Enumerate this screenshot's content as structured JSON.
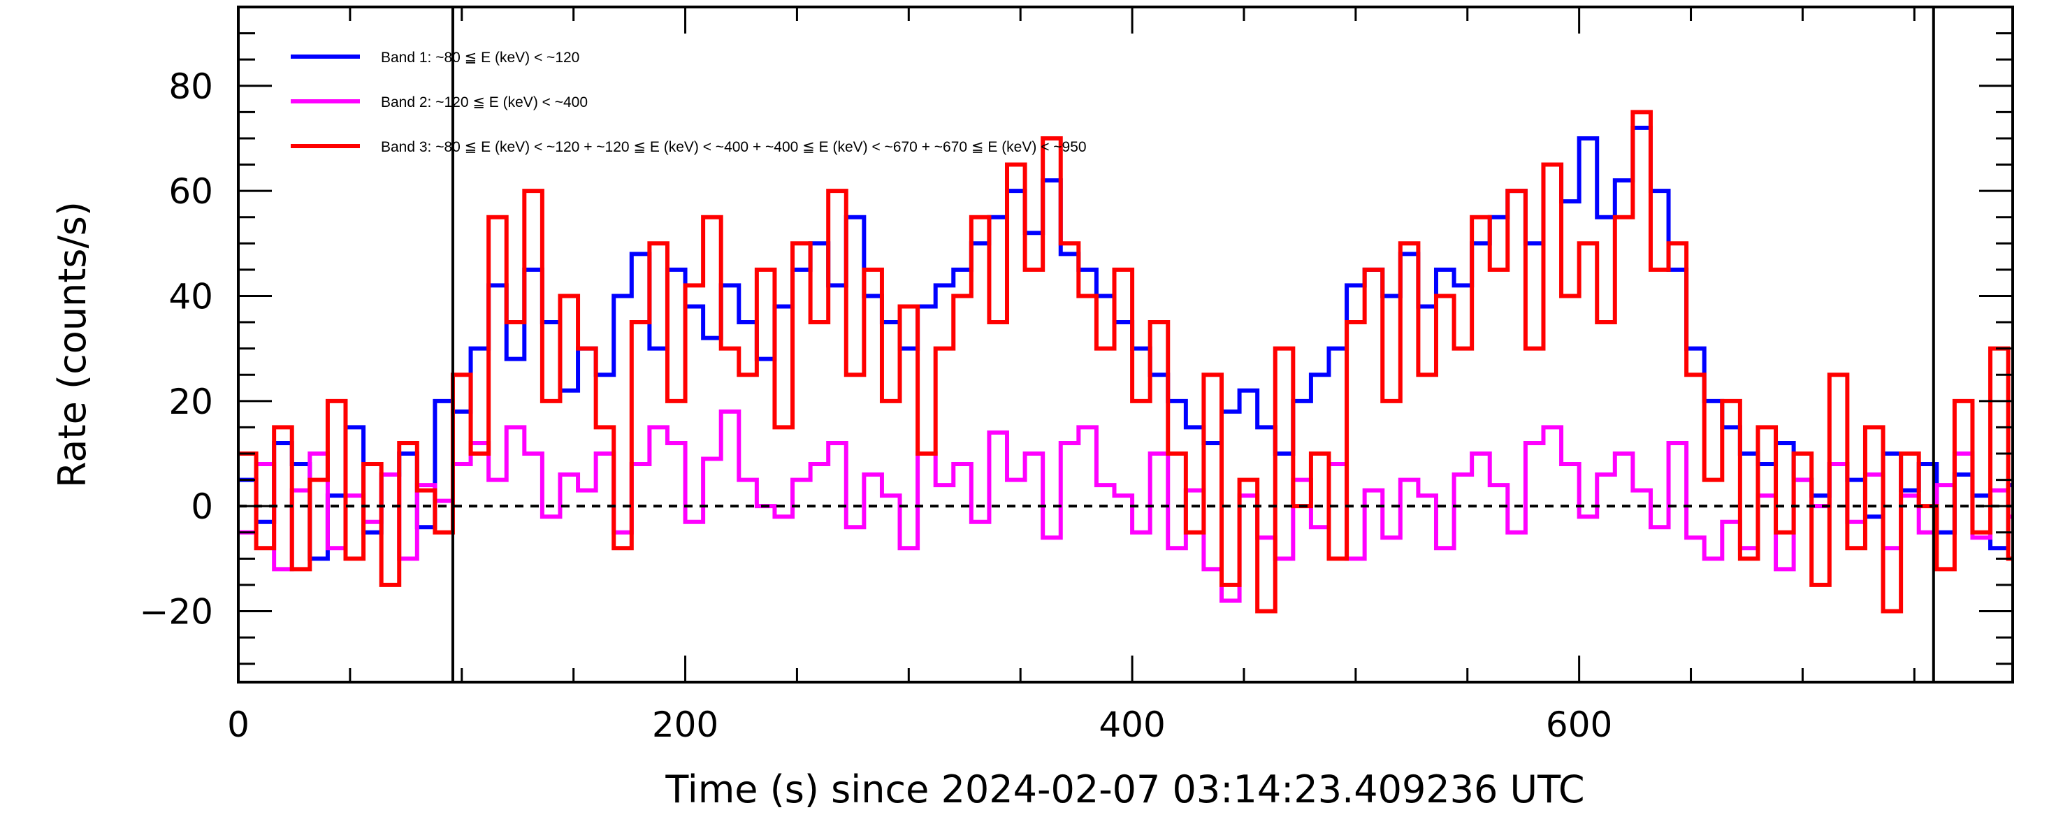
{
  "chart_data": {
    "type": "line",
    "style": "histogram-step",
    "xlabel": "Time (s) since 2024-02-07 03:14:23.409236 UTC",
    "ylabel": "Rate (counts/s)",
    "xlim": [
      0,
      794
    ],
    "ylim": [
      -33.5,
      95
    ],
    "xticks": [
      0,
      200,
      400,
      600
    ],
    "xtick_labels": [
      "0",
      "200",
      "400",
      "600"
    ],
    "yticks": [
      -20,
      0,
      20,
      40,
      60,
      80
    ],
    "ytick_labels": [
      "−20",
      "0",
      "20",
      "40",
      "60",
      "80"
    ],
    "x_minor_step": 50,
    "y_minor_step": 5,
    "reference_line_y": 0,
    "vertical_markers_x": [
      96,
      758.6
    ],
    "legend_position": "top-left",
    "x_start": 0,
    "x_step": 8,
    "series": [
      {
        "name": "Band 1: ~80 ≦ E (keV) < ~120",
        "color": "#0000ff",
        "values": [
          5,
          -3,
          12,
          8,
          -10,
          2,
          15,
          -5,
          6,
          10,
          -4,
          20,
          18,
          30,
          42,
          28,
          45,
          35,
          22,
          30,
          25,
          40,
          48,
          30,
          45,
          38,
          32,
          42,
          35,
          28,
          38,
          45,
          50,
          42,
          55,
          40,
          35,
          30,
          38,
          42,
          45,
          50,
          55,
          60,
          52,
          62,
          48,
          45,
          40,
          35,
          30,
          25,
          20,
          15,
          12,
          18,
          22,
          15,
          10,
          20,
          25,
          30,
          42,
          45,
          40,
          48,
          38,
          45,
          42,
          50,
          55,
          60,
          50,
          65,
          58,
          70,
          55,
          62,
          72,
          60,
          45,
          30,
          20,
          15,
          10,
          8,
          12,
          5,
          2,
          8,
          5,
          -2,
          10,
          3,
          8,
          -5,
          6,
          2,
          -8,
          4
        ]
      },
      {
        "name": "Band 2: ~120 ≦ E (keV) < ~400",
        "color": "#ff00ff",
        "values": [
          -5,
          8,
          -12,
          3,
          10,
          -8,
          2,
          -3,
          6,
          -10,
          4,
          1,
          8,
          12,
          5,
          15,
          10,
          -2,
          6,
          3,
          10,
          -5,
          8,
          15,
          12,
          -3,
          9,
          18,
          5,
          0,
          -2,
          5,
          8,
          12,
          -4,
          6,
          2,
          -8,
          10,
          4,
          8,
          -3,
          14,
          5,
          10,
          -6,
          12,
          15,
          4,
          2,
          -5,
          10,
          -8,
          3,
          -12,
          -18,
          2,
          -6,
          -10,
          5,
          -4,
          8,
          -10,
          3,
          -6,
          5,
          2,
          -8,
          6,
          10,
          4,
          -5,
          12,
          15,
          8,
          -2,
          6,
          10,
          3,
          -4,
          12,
          -6,
          -10,
          -3,
          -8,
          2,
          -12,
          5,
          0,
          8,
          -3,
          6,
          -8,
          2,
          -5,
          4,
          10,
          -6,
          3,
          -2
        ]
      },
      {
        "name": "Band 3: ~80 ≦ E (keV) < ~120 + ~120 ≦ E (keV) < ~400 + ~400 ≦ E (keV) < ~670 + ~670 ≦ E (keV) < ~950",
        "color": "#ff0000",
        "values": [
          10,
          -8,
          15,
          -12,
          5,
          20,
          -10,
          8,
          -15,
          12,
          3,
          -5,
          25,
          10,
          55,
          35,
          60,
          20,
          40,
          30,
          15,
          -8,
          35,
          50,
          20,
          42,
          55,
          30,
          25,
          45,
          15,
          50,
          35,
          60,
          25,
          45,
          20,
          38,
          10,
          30,
          40,
          55,
          35,
          65,
          45,
          70,
          50,
          40,
          30,
          45,
          20,
          35,
          10,
          -5,
          25,
          -15,
          5,
          -20,
          30,
          0,
          10,
          -10,
          35,
          45,
          20,
          50,
          25,
          40,
          30,
          55,
          45,
          60,
          30,
          65,
          40,
          50,
          35,
          55,
          75,
          45,
          50,
          25,
          5,
          20,
          -10,
          15,
          -5,
          10,
          -15,
          25,
          -8,
          15,
          -20,
          10,
          0,
          -12,
          20,
          -5,
          30,
          -10
        ]
      }
    ]
  }
}
